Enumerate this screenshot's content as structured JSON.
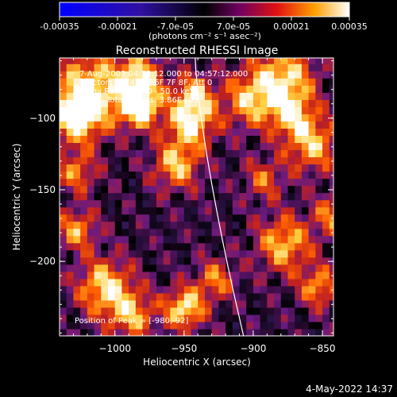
{
  "colorbar": {
    "ticks": [
      "-0.00035",
      "-0.00021",
      "-7.0e-05",
      "7.0e-05",
      "0.00021",
      "0.00035"
    ],
    "units": "(photons cm⁻² s⁻¹ asec⁻²)"
  },
  "chart_data": {
    "type": "heatmap",
    "title": "Reconstructed RHESSI Image",
    "xlabel": "Heliocentric X (arcsec)",
    "ylabel": "Heliocentric Y (arcsec)",
    "xlim": [
      -1040,
      -842
    ],
    "ylim": [
      -252,
      -58
    ],
    "xticks": [
      -1000,
      -950,
      -900,
      -850
    ],
    "xtick_labels": [
      "−1000",
      "−950",
      "−900",
      "−850"
    ],
    "yticks": [
      -100,
      -150,
      -200
    ],
    "ytick_labels": [
      "−100",
      "−150",
      "−200"
    ],
    "colormap": [
      "#0000ff",
      "#4020a0",
      "#3a1a60",
      "#000000",
      "#6a1a80",
      "#c02020",
      "#ff6000",
      "#ffd040",
      "#ffffff"
    ],
    "value_range": [
      -0.00035,
      0.00035
    ],
    "info_lines": [
      "7-Aug-2003 04:53:12.000 to 04:57:12.000",
      "Detectors: 3F 4F 5F 6F 7F 8F, Att 0",
      "Energy Range: 25.0 - 50.0 keV",
      "Clean    Total counts: 3.86E+03"
    ],
    "peak_label": "Position of Peak = [-980,-92]",
    "peak": [
      -980,
      -92
    ],
    "limb_color": "#ffffff"
  },
  "timestamp": "4-May-2022 14:37"
}
